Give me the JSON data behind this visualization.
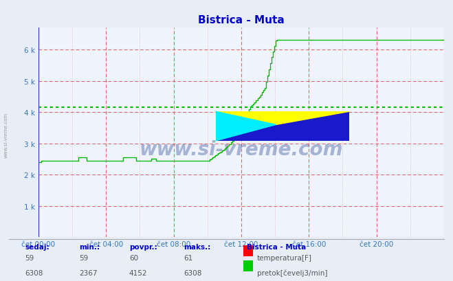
{
  "title": "Bistrica - Muta",
  "bg_color": "#e8eef8",
  "plot_bg_color": "#f0f4fc",
  "x_labels": [
    "čet 00:00",
    "čet 04:00",
    "čet 08:00",
    "čet 12:00",
    "čet 16:00",
    "čet 20:00"
  ],
  "y_tick_labels": [
    "",
    "1 k",
    "2 k",
    "3 k",
    "4 k",
    "5 k",
    "6 k"
  ],
  "y_max": 6700,
  "y_min": 0,
  "num_points": 288,
  "flow_color": "#00bb00",
  "avg_line_color": "#00cc00",
  "avg_value": 4152,
  "flow_min": 2367,
  "flow_max": 6308,
  "flow_current": 6308,
  "temp_min": 59,
  "temp_max": 61,
  "temp_current": 59,
  "temp_avg": 60,
  "grid_dashed_color": "#dd6666",
  "grid_dotted_color": "#ddaaaa",
  "watermark": "www.si-vreme.com",
  "watermark_color": "#1a3a8a",
  "legend_title": "Bistrica - Muta",
  "axis_left_color": "#3333cc",
  "axis_bottom_color": "#cc0000",
  "tick_label_color": "#3377bb",
  "title_color": "#0000cc",
  "footer_label_color": "#0000cc",
  "footer_value_color": "#555555"
}
